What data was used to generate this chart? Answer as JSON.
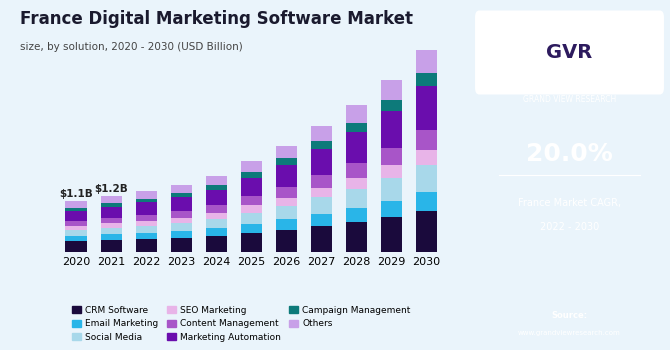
{
  "title": "France Digital Marketing Software Market",
  "subtitle": "size, by solution, 2020 - 2030 (USD Billion)",
  "years": [
    2020,
    2021,
    2022,
    2023,
    2024,
    2025,
    2026,
    2027,
    2028,
    2029,
    2030
  ],
  "annotations": {
    "2020": "$1.1B",
    "2021": "$1.2B"
  },
  "segments": {
    "CRM Software": [
      0.22,
      0.24,
      0.26,
      0.28,
      0.32,
      0.38,
      0.44,
      0.52,
      0.6,
      0.7,
      0.82
    ],
    "Email Marketing": [
      0.1,
      0.11,
      0.12,
      0.13,
      0.15,
      0.18,
      0.21,
      0.24,
      0.27,
      0.31,
      0.36
    ],
    "Social Media": [
      0.12,
      0.13,
      0.14,
      0.16,
      0.18,
      0.22,
      0.26,
      0.32,
      0.38,
      0.45,
      0.54
    ],
    "SEO Marketing": [
      0.08,
      0.09,
      0.1,
      0.11,
      0.12,
      0.14,
      0.16,
      0.19,
      0.22,
      0.26,
      0.3
    ],
    "Content Management": [
      0.1,
      0.11,
      0.12,
      0.13,
      0.15,
      0.18,
      0.21,
      0.25,
      0.29,
      0.34,
      0.4
    ],
    "Marketing Automation": [
      0.2,
      0.22,
      0.24,
      0.27,
      0.31,
      0.37,
      0.44,
      0.52,
      0.62,
      0.73,
      0.87
    ],
    "Campaign Management": [
      0.06,
      0.07,
      0.07,
      0.08,
      0.09,
      0.11,
      0.13,
      0.15,
      0.18,
      0.21,
      0.25
    ],
    "Others": [
      0.12,
      0.13,
      0.15,
      0.16,
      0.18,
      0.22,
      0.25,
      0.31,
      0.34,
      0.4,
      0.46
    ]
  },
  "colors": {
    "CRM Software": "#1a0a3c",
    "Email Marketing": "#29b5e8",
    "Social Media": "#a8d8ea",
    "SEO Marketing": "#e8b4e8",
    "Content Management": "#a855c8",
    "Marketing Automation": "#6a0dad",
    "Campaign Management": "#0d7a7a",
    "Others": "#c8a0e8"
  },
  "bg_color": "#eaf4fb",
  "sidebar_color": "#2d1b5e",
  "bar_width": 0.6,
  "ylim": [
    0,
    4.5
  ],
  "figsize": [
    6.7,
    3.5
  ],
  "dpi": 100
}
